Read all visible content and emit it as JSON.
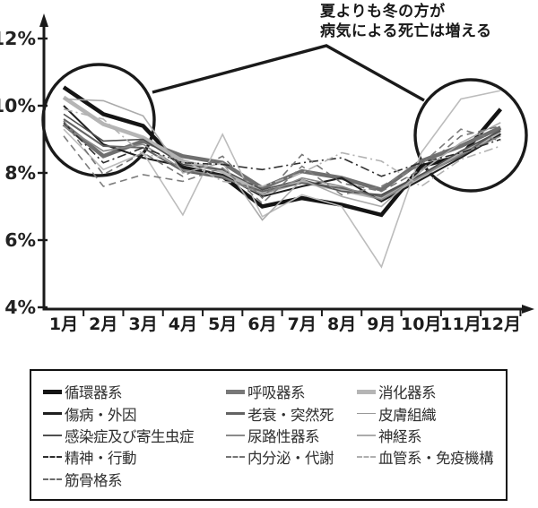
{
  "annotation": {
    "line1": "夏よりも冬の方が",
    "line2": "病気による死亡は増える"
  },
  "chart_data": {
    "type": "line",
    "title": "",
    "xlabel": "",
    "ylabel": "",
    "x_categories": [
      "1月",
      "2月",
      "3月",
      "4月",
      "5月",
      "6月",
      "7月",
      "8月",
      "9月",
      "10月",
      "11月",
      "12月"
    ],
    "y_axis": {
      "min": 4,
      "max": 12,
      "unit": "%"
    },
    "y_ticks": [
      {
        "value": 12,
        "label": "12%"
      },
      {
        "value": 10,
        "label": "10%"
      },
      {
        "value": 8,
        "label": "8%"
      },
      {
        "value": 6,
        "label": "6%"
      },
      {
        "value": 4,
        "label": "4%"
      }
    ],
    "grid": false,
    "legend_position": "bottom-box",
    "series": [
      {
        "name": "循環器系",
        "color": "#141414",
        "width": 4.5,
        "dash": "solid",
        "values": [
          10.55,
          9.75,
          9.4,
          8.15,
          7.9,
          7.0,
          7.25,
          7.05,
          6.75,
          8.2,
          8.5,
          9.9
        ]
      },
      {
        "name": "呼吸器系",
        "color": "#6f6f6f",
        "width": 4.5,
        "dash": "solid",
        "values": [
          9.45,
          8.5,
          8.95,
          8.5,
          8.3,
          7.55,
          8.05,
          7.85,
          7.5,
          8.35,
          8.8,
          9.35
        ]
      },
      {
        "name": "消化器系",
        "color": "#b5b5b5",
        "width": 4.5,
        "dash": "solid",
        "values": [
          10.25,
          9.45,
          9.05,
          8.35,
          8.05,
          7.4,
          7.75,
          7.5,
          7.25,
          7.9,
          8.6,
          9.2
        ]
      },
      {
        "name": "傷病・外因",
        "color": "#1f1f1f",
        "width": 2.0,
        "dash": "solid",
        "values": [
          10.0,
          8.85,
          8.45,
          8.2,
          7.95,
          7.3,
          7.6,
          7.85,
          7.15,
          7.8,
          8.45,
          9.15
        ]
      },
      {
        "name": "老衰・突然死",
        "color": "#636363",
        "width": 2.0,
        "dash": "solid",
        "values": [
          9.6,
          8.8,
          8.75,
          8.05,
          7.85,
          7.45,
          7.7,
          7.55,
          7.3,
          7.95,
          8.5,
          9.3
        ]
      },
      {
        "name": "皮膚組織",
        "color": "#bcbcbc",
        "width": 1.6,
        "dash": "solid",
        "values": [
          9.3,
          8.1,
          8.6,
          6.75,
          9.15,
          6.7,
          7.35,
          7.0,
          5.2,
          8.6,
          10.2,
          10.45
        ]
      },
      {
        "name": "感染症及び寄生虫症",
        "color": "#4f4f4f",
        "width": 1.6,
        "dash": "solid",
        "values": [
          9.75,
          8.95,
          9.0,
          8.25,
          8.1,
          7.5,
          7.8,
          7.45,
          7.35,
          7.95,
          8.65,
          9.25
        ]
      },
      {
        "name": "尿路性器系",
        "color": "#8a8a8a",
        "width": 1.6,
        "dash": "solid",
        "values": [
          9.4,
          8.65,
          8.85,
          8.1,
          7.9,
          7.35,
          7.85,
          7.6,
          7.2,
          7.9,
          8.55,
          9.1
        ]
      },
      {
        "name": "神経系",
        "color": "#ababab",
        "width": 1.6,
        "dash": "solid",
        "values": [
          10.2,
          10.15,
          9.7,
          8.0,
          8.3,
          6.6,
          7.8,
          7.3,
          7.0,
          8.05,
          8.9,
          9.5
        ]
      },
      {
        "name": "精神・行動",
        "color": "#2e2e2e",
        "width": 1.6,
        "dash": "dashdot",
        "values": [
          9.5,
          8.3,
          8.75,
          8.3,
          8.25,
          8.1,
          8.3,
          8.45,
          7.9,
          8.3,
          8.6,
          9.0
        ]
      },
      {
        "name": "内分泌・代謝",
        "color": "#757575",
        "width": 1.6,
        "dash": "dashed",
        "values": [
          9.55,
          7.95,
          8.6,
          7.9,
          8.5,
          7.25,
          8.55,
          7.7,
          7.45,
          8.1,
          9.1,
          9.4
        ]
      },
      {
        "name": "血管系・免疫機構",
        "color": "#b2b2b2",
        "width": 1.6,
        "dash": "dashdot",
        "values": [
          9.9,
          9.6,
          8.55,
          8.4,
          7.75,
          7.6,
          8.0,
          8.6,
          8.35,
          7.6,
          8.4,
          8.8
        ]
      },
      {
        "name": "筋骨格系",
        "color": "#7d7d7d",
        "width": 1.6,
        "dash": "dashed",
        "values": [
          9.1,
          7.6,
          7.95,
          7.75,
          8.15,
          7.1,
          8.2,
          7.35,
          7.6,
          8.25,
          9.3,
          8.95
        ]
      }
    ],
    "highlight_circles": [
      {
        "cx": 110,
        "cy": 134,
        "r": 62
      },
      {
        "cx": 525,
        "cy": 151,
        "r": 62
      }
    ],
    "callout_points": [
      [
        170,
        103
      ],
      [
        364,
        51
      ],
      [
        473,
        112
      ]
    ],
    "axis_color": "#1a1a1a"
  },
  "legend": {
    "items": [
      {
        "label": "循環器系",
        "marker": "thick-line-marker",
        "style": "thick",
        "color": "#141414"
      },
      {
        "label": "呼吸器系",
        "marker": "thick-line-marker",
        "style": "thick",
        "color": "#787878"
      },
      {
        "label": "消化器系",
        "marker": "thick-line-marker",
        "style": "thick",
        "color": "#b5b5b5"
      },
      {
        "label": "傷病・外因",
        "marker": "medium-line-marker",
        "style": "medium",
        "color": "#1f1f1f"
      },
      {
        "label": "老衰・突然死",
        "marker": "medium-line-marker",
        "style": "medium",
        "color": "#636363"
      },
      {
        "label": "皮膚組織",
        "marker": "thin-line-marker",
        "style": "thin",
        "color": "#999999"
      },
      {
        "label": "感染症及び寄生虫症",
        "marker": "thin-line-marker",
        "style": "thin",
        "color": "#4f4f4f"
      },
      {
        "label": "尿路性器系",
        "marker": "thin-line-marker",
        "style": "thin",
        "color": "#8a8a8a"
      },
      {
        "label": "神経系",
        "marker": "thin-line-marker",
        "style": "thin",
        "color": "#ababab"
      },
      {
        "label": "精神・行動",
        "marker": "dashed-line-marker",
        "style": "dashed",
        "color": "#2e2e2e"
      },
      {
        "label": "内分泌・代謝",
        "marker": "dashed-line-marker",
        "style": "dashed",
        "color": "#757575"
      },
      {
        "label": "血管系・免疫機構",
        "marker": "dashed-line-marker",
        "style": "dashed",
        "color": "#b0b0b0"
      },
      {
        "label": "筋骨格系",
        "marker": "dashed-line-marker",
        "style": "dashed",
        "color": "#6b6b6b"
      }
    ]
  }
}
